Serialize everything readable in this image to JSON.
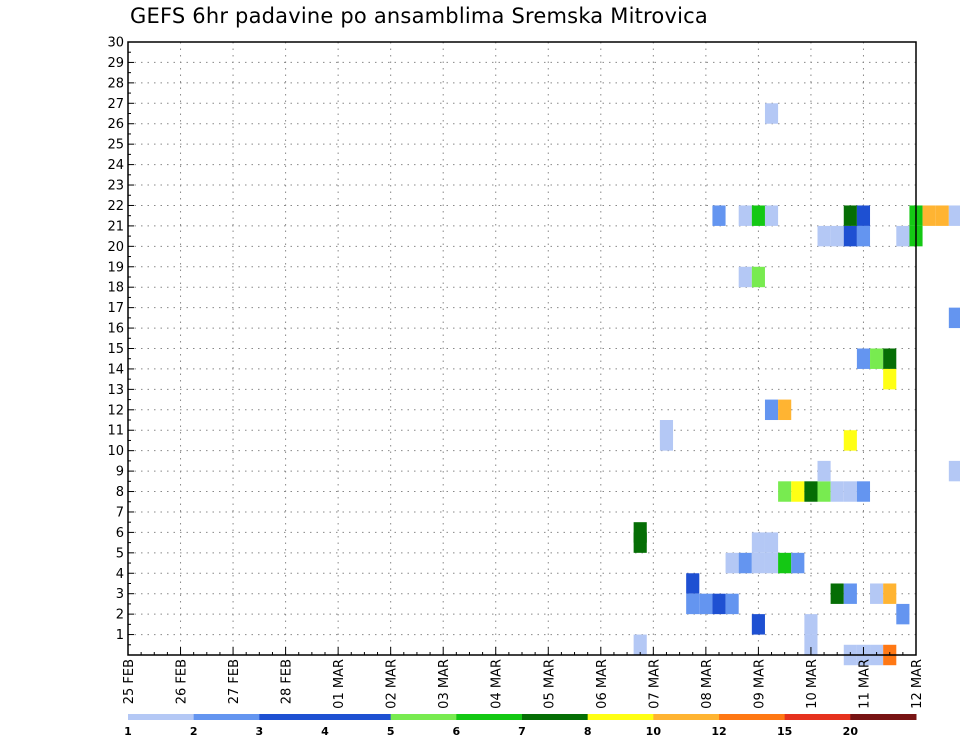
{
  "chart_data": {
    "type": "heatmap",
    "title": "GEFS 6hr padavine po ansamblima Sremska Mitrovica",
    "xlabel": "",
    "ylabel": "",
    "y_ticks": [
      1,
      2,
      3,
      4,
      5,
      6,
      7,
      8,
      9,
      10,
      11,
      12,
      13,
      14,
      15,
      16,
      17,
      18,
      19,
      20,
      21,
      22,
      23,
      24,
      25,
      26,
      27,
      28,
      29,
      30
    ],
    "ylim": [
      0,
      30
    ],
    "x_ticks": [
      "25 FEB",
      "26 FEB",
      "27 FEB",
      "28 FEB",
      "01 MAR",
      "02 MAR",
      "03 MAR",
      "04 MAR",
      "05 MAR",
      "06 MAR",
      "07 MAR",
      "08 MAR",
      "09 MAR",
      "10 MAR",
      "11 MAR",
      "12 MAR"
    ],
    "xlim_days": [
      0,
      15
    ],
    "grid": true,
    "color_scale": {
      "labels": [
        "1",
        "2",
        "3",
        "4",
        "5",
        "6",
        "7",
        "8",
        "10",
        "12",
        "15",
        "20"
      ],
      "colors": [
        "#b4c8f5",
        "#6495f0",
        "#1e50d2",
        "#1e50d2",
        "#78eb50",
        "#14c814",
        "#056e05",
        "#ffff14",
        "#ffb432",
        "#ff7814",
        "#e6321e",
        "#781414"
      ]
    },
    "cells": [
      {
        "day": 9.75,
        "member": 0.5,
        "color": "#b4c8f5"
      },
      {
        "day": 9.75,
        "member": 5.5,
        "color": "#056e05"
      },
      {
        "day": 9.75,
        "member": 6,
        "color": "#056e05"
      },
      {
        "day": 10.25,
        "member": 10.5,
        "color": "#b4c8f5"
      },
      {
        "day": 10.25,
        "member": 11,
        "color": "#b4c8f5"
      },
      {
        "day": 10.75,
        "member": 3.5,
        "color": "#1e50d2"
      },
      {
        "day": 10.75,
        "member": 2.5,
        "color": "#6495f0"
      },
      {
        "day": 11,
        "member": 2.5,
        "color": "#6495f0"
      },
      {
        "day": 11.25,
        "member": 2.5,
        "color": "#1e50d2"
      },
      {
        "day": 11.5,
        "member": 2.5,
        "color": "#6495f0"
      },
      {
        "day": 11.25,
        "member": 21.5,
        "color": "#6495f0"
      },
      {
        "day": 11.5,
        "member": 4.5,
        "color": "#b4c8f5"
      },
      {
        "day": 11.75,
        "member": 4.5,
        "color": "#6495f0"
      },
      {
        "day": 12,
        "member": 4.5,
        "color": "#b4c8f5"
      },
      {
        "day": 12,
        "member": 5.5,
        "color": "#b4c8f5"
      },
      {
        "day": 12.25,
        "member": 4.5,
        "color": "#b4c8f5"
      },
      {
        "day": 12.25,
        "member": 5.5,
        "color": "#b4c8f5"
      },
      {
        "day": 12.5,
        "member": 4.5,
        "color": "#14c814"
      },
      {
        "day": 12.75,
        "member": 4.5,
        "color": "#6495f0"
      },
      {
        "day": 12,
        "member": 1.5,
        "color": "#1e50d2"
      },
      {
        "day": 11.75,
        "member": 18.5,
        "color": "#b4c8f5"
      },
      {
        "day": 12,
        "member": 18.5,
        "color": "#78eb50"
      },
      {
        "day": 11.75,
        "member": 21.5,
        "color": "#b4c8f5"
      },
      {
        "day": 12,
        "member": 21.5,
        "color": "#14c814"
      },
      {
        "day": 12.25,
        "member": 21.5,
        "color": "#b4c8f5"
      },
      {
        "day": 12.25,
        "member": 26.5,
        "color": "#b4c8f5"
      },
      {
        "day": 12.25,
        "member": 12,
        "color": "#6495f0"
      },
      {
        "day": 12.5,
        "member": 12,
        "color": "#ffb432"
      },
      {
        "day": 12.5,
        "member": 8,
        "color": "#78eb50"
      },
      {
        "day": 12.75,
        "member": 8,
        "color": "#ffff14"
      },
      {
        "day": 13,
        "member": 8,
        "color": "#056e05"
      },
      {
        "day": 13.25,
        "member": 8,
        "color": "#78eb50"
      },
      {
        "day": 13.5,
        "member": 8,
        "color": "#b4c8f5"
      },
      {
        "day": 13.75,
        "member": 8,
        "color": "#b4c8f5"
      },
      {
        "day": 14,
        "member": 8,
        "color": "#6495f0"
      },
      {
        "day": 13.25,
        "member": 9,
        "color": "#b4c8f5"
      },
      {
        "day": 13,
        "member": 0.5,
        "color": "#b4c8f5"
      },
      {
        "day": 13,
        "member": 1.5,
        "color": "#b4c8f5"
      },
      {
        "day": 13.5,
        "member": 3,
        "color": "#056e05"
      },
      {
        "day": 13.75,
        "member": 3,
        "color": "#6495f0"
      },
      {
        "day": 14.25,
        "member": 3,
        "color": "#b4c8f5"
      },
      {
        "day": 14.5,
        "member": 3,
        "color": "#ffb432"
      },
      {
        "day": 14.75,
        "member": 2,
        "color": "#6495f0"
      },
      {
        "day": 13.75,
        "member": 0,
        "color": "#b4c8f5"
      },
      {
        "day": 14,
        "member": 0,
        "color": "#b4c8f5"
      },
      {
        "day": 14.25,
        "member": 0,
        "color": "#b4c8f5"
      },
      {
        "day": 14.5,
        "member": 0,
        "color": "#ff7814"
      },
      {
        "day": 13.75,
        "member": 10.5,
        "color": "#ffff14"
      },
      {
        "day": 14,
        "member": 14.5,
        "color": "#6495f0"
      },
      {
        "day": 14.25,
        "member": 14.5,
        "color": "#78eb50"
      },
      {
        "day": 14.5,
        "member": 14.5,
        "color": "#056e05"
      },
      {
        "day": 14.5,
        "member": 13.5,
        "color": "#ffff14"
      },
      {
        "day": 13.25,
        "member": 20.5,
        "color": "#b4c8f5"
      },
      {
        "day": 13.5,
        "member": 20.5,
        "color": "#b4c8f5"
      },
      {
        "day": 13.75,
        "member": 20.5,
        "color": "#1e50d2"
      },
      {
        "day": 14,
        "member": 20.5,
        "color": "#6495f0"
      },
      {
        "day": 13.75,
        "member": 21.5,
        "color": "#056e05"
      },
      {
        "day": 14,
        "member": 21.5,
        "color": "#1e50d2"
      },
      {
        "day": 14.75,
        "member": 20.5,
        "color": "#b4c8f5"
      },
      {
        "day": 15,
        "member": 20.5,
        "color": "#14c814"
      },
      {
        "day": 15,
        "member": 21.5,
        "color": "#14c814"
      },
      {
        "day": 15.25,
        "member": 21.5,
        "color": "#ffb432"
      },
      {
        "day": 15.5,
        "member": 21.5,
        "color": "#ffb432"
      },
      {
        "day": 15.75,
        "member": 21.5,
        "color": "#b4c8f5"
      },
      {
        "day": 15.75,
        "member": 16.5,
        "color": "#6495f0"
      },
      {
        "day": 15.75,
        "member": 9,
        "color": "#b4c8f5"
      }
    ]
  }
}
